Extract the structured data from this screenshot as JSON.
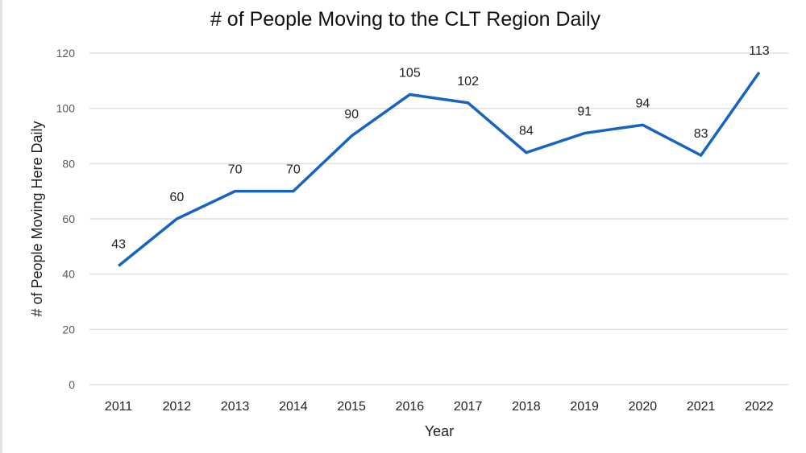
{
  "chart_data": {
    "type": "line",
    "title": "# of People Moving to the CLT Region Daily",
    "xlabel": "Year",
    "ylabel": "# of People Moving Here Daily",
    "categories": [
      "2011",
      "2012",
      "2013",
      "2014",
      "2015",
      "2016",
      "2017",
      "2018",
      "2019",
      "2020",
      "2021",
      "2022"
    ],
    "series": [
      {
        "name": "# of People Moving Here Daily",
        "values": [
          43,
          60,
          70,
          70,
          90,
          105,
          102,
          84,
          91,
          94,
          83,
          113
        ]
      }
    ],
    "data_labels": [
      "43",
      "60",
      "70",
      "70",
      "90",
      "105",
      "102",
      "84",
      "91",
      "94",
      "83",
      "113"
    ],
    "ylim": [
      0,
      120
    ],
    "yticks": [
      "0",
      "20",
      "40",
      "60",
      "80",
      "100",
      "120"
    ],
    "grid": true,
    "legend": "none",
    "colors": {
      "line": "#1764c0",
      "grid": "#e0e0e0",
      "tick": "#595959"
    }
  }
}
